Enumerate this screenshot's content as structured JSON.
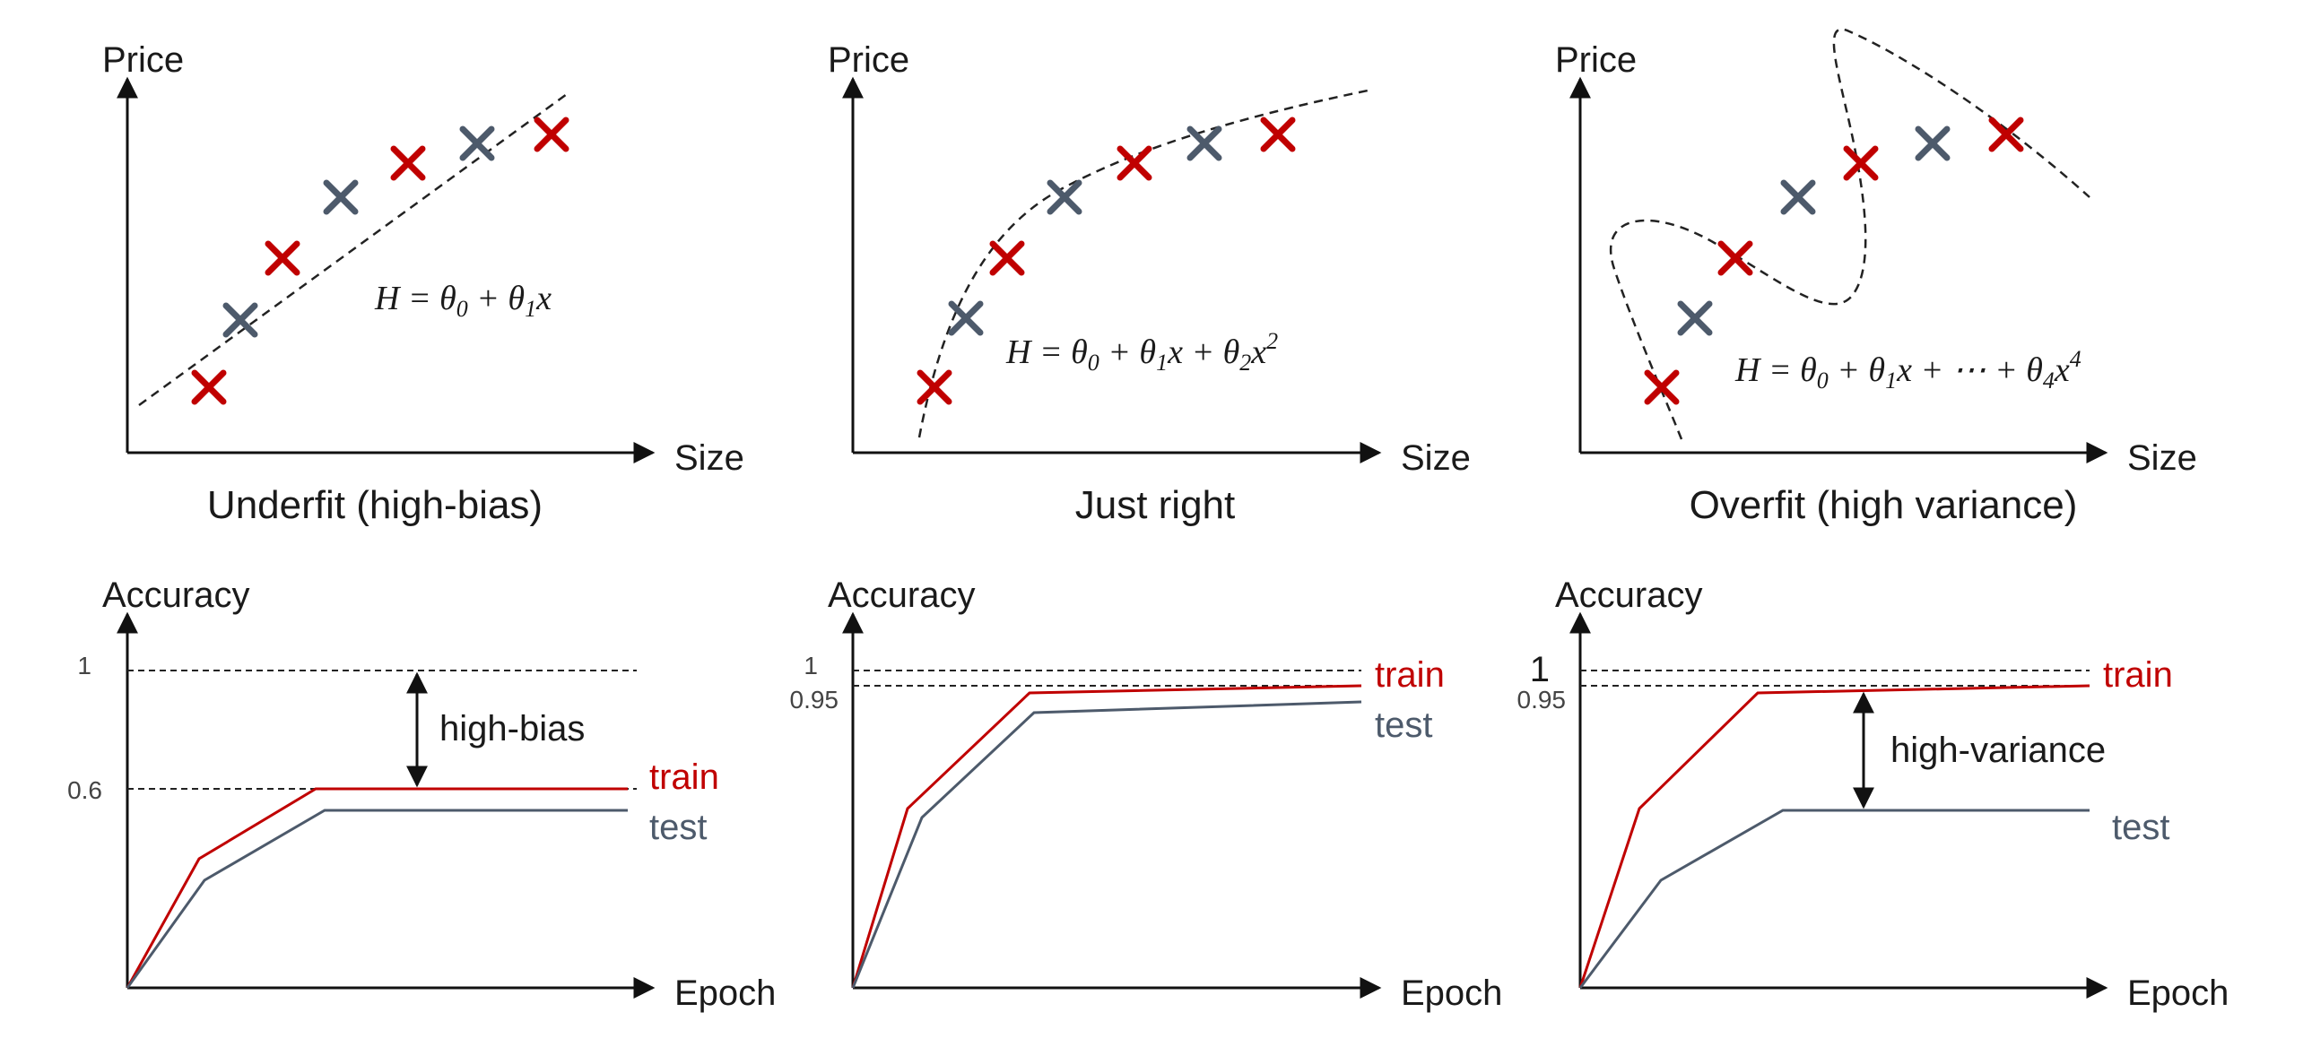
{
  "colors": {
    "train": "#c00000",
    "test": "#4d5a6b",
    "axis": "#111111"
  },
  "fit_panels": [
    {
      "id": "underfit",
      "y_axis": "Price",
      "x_axis": "Size",
      "caption": "Underfit (high-bias)",
      "formula": {
        "lhs": "H = θ",
        "terms": [
          "0",
          " + θ",
          "1",
          "x"
        ]
      },
      "formula_text": "H = θ0 + θ1x"
    },
    {
      "id": "just-right",
      "y_axis": "Price",
      "x_axis": "Size",
      "caption": "Just right",
      "formula_text": "H = θ0 + θ1x + θ2x2"
    },
    {
      "id": "overfit",
      "y_axis": "Price",
      "x_axis": "Size",
      "caption": "Overfit (high variance)",
      "formula_text": "H = θ0 + θ1x + ⋯ + θ4x4"
    }
  ],
  "accuracy_panels": [
    {
      "id": "acc-underfit",
      "y_axis": "Accuracy",
      "x_axis": "Epoch",
      "ticks": [
        "1",
        "0.6"
      ],
      "train_label": "train",
      "test_label": "test",
      "annotation": "high-bias",
      "train_plateau": 0.6,
      "test_plateau": 0.55
    },
    {
      "id": "acc-just-right",
      "y_axis": "Accuracy",
      "x_axis": "Epoch",
      "ticks": [
        "1",
        "0.95"
      ],
      "train_label": "train",
      "test_label": "test",
      "annotation": "",
      "train_plateau": 0.95,
      "test_plateau": 0.9
    },
    {
      "id": "acc-overfit",
      "y_axis": "Accuracy",
      "x_axis": "Epoch",
      "ticks": [
        "1",
        "0.95"
      ],
      "train_label": "train",
      "test_label": "test",
      "annotation": "high-variance",
      "train_plateau": 0.95,
      "test_plateau": 0.55
    }
  ]
}
